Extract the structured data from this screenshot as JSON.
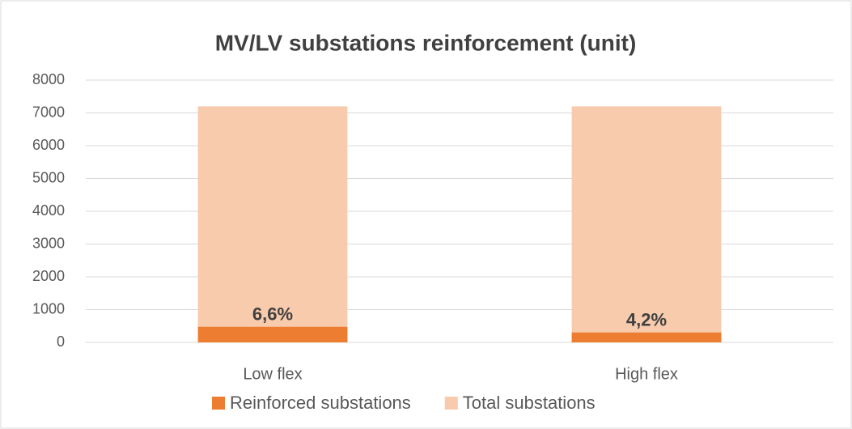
{
  "chart_data": {
    "type": "bar",
    "mode": "overlap",
    "title": "MV/LV substations reinforcement (unit)",
    "categories": [
      "Low flex",
      "High flex"
    ],
    "series": [
      {
        "name": "Reinforced substations",
        "color": "#ed7d31",
        "values": [
          475,
          302
        ]
      },
      {
        "name": "Total substations",
        "color": "#f8cbad",
        "values": [
          7200,
          7200
        ]
      }
    ],
    "annotations": [
      "6,6%",
      "4,2%"
    ],
    "ylim": [
      0,
      8000
    ],
    "yticks": [
      0,
      1000,
      2000,
      3000,
      4000,
      5000,
      6000,
      7000,
      8000
    ],
    "grid": true,
    "legend": "bottom"
  }
}
